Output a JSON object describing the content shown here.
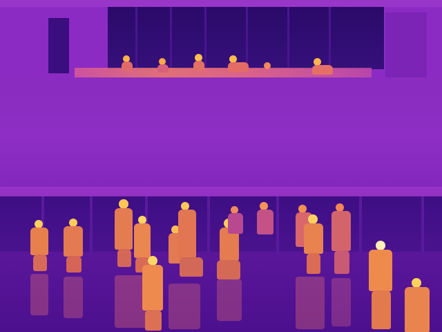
{
  "image": {
    "description_kind": "thermal-camera-scene",
    "palette": [
      "#2a0a6a",
      "#7d22b4",
      "#c04aa8",
      "#f07b6a",
      "#ffd24a",
      "#fff4c8"
    ]
  }
}
